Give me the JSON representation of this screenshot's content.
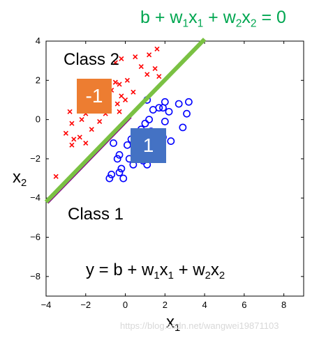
{
  "equations": {
    "boundary": {
      "b": "b",
      "plus1": " + w",
      "s1": "1",
      "x1": "x",
      "s1b": "1",
      "plus2": " + w",
      "s2": "2",
      "x2": "x",
      "s2b": "2",
      "eq": " = 0"
    },
    "model": {
      "pre": "y = b + w",
      "s1": "1",
      "x1": "x",
      "s1b": "1",
      "plus2": " + w",
      "s2": "2",
      "x2": "x",
      "s2b": "2"
    }
  },
  "labels": {
    "class2": "Class 2",
    "class1": "Class 1",
    "box_neg": "-1",
    "box_pos": "1"
  },
  "axes": {
    "xlabel_main": "x",
    "xlabel_sub": "1",
    "ylabel_main": "x",
    "ylabel_sub": "2"
  },
  "watermark": "https://blog.csdn.net/wangwei19871103",
  "colors": {
    "class2": "#ff0000",
    "class1": "#0000ff",
    "boundary": "#7ac143",
    "boundary_thin": "#800080",
    "box_neg": "#ed7d31",
    "box_pos": "#4472c4",
    "equation": "#00a650"
  },
  "chart_data": {
    "type": "scatter",
    "xlim": [
      -4,
      9
    ],
    "ylim": [
      -9,
      4
    ],
    "xticks": [
      -4,
      -2,
      0,
      2,
      4,
      6,
      8
    ],
    "yticks": [
      -8,
      -6,
      -4,
      -2,
      0,
      2,
      4
    ],
    "grid": false,
    "boundary_line": [
      [
        -4,
        -4.2
      ],
      [
        4,
        4.1
      ]
    ],
    "series": [
      {
        "marker": "x",
        "color": "#ff0000",
        "points": [
          [
            1.6,
            3.6
          ],
          [
            1.2,
            3.3
          ],
          [
            0.5,
            3.2
          ],
          [
            -0.5,
            2.9
          ],
          [
            -0.2,
            3.1
          ],
          [
            0.8,
            2.7
          ],
          [
            1.5,
            2.6
          ],
          [
            1.1,
            2.3
          ],
          [
            1.7,
            2.2
          ],
          [
            0.1,
            2.0
          ],
          [
            -0.5,
            1.9
          ],
          [
            -1.0,
            1.9
          ],
          [
            -1.5,
            1.8
          ],
          [
            -0.3,
            1.8
          ],
          [
            -0.7,
            1.5
          ],
          [
            0.4,
            1.4
          ],
          [
            -1.1,
            1.3
          ],
          [
            -0.2,
            1.2
          ],
          [
            -0.9,
            1.0
          ],
          [
            0.0,
            1.0
          ],
          [
            -0.4,
            0.8
          ],
          [
            -1.5,
            0.7
          ],
          [
            -1.8,
            0.6
          ],
          [
            -0.8,
            0.6
          ],
          [
            -0.3,
            0.4
          ],
          [
            -1.0,
            0.3
          ],
          [
            -2.0,
            0.3
          ],
          [
            -2.8,
            0.4
          ],
          [
            -2.2,
            0.0
          ],
          [
            -1.3,
            -0.1
          ],
          [
            -2.7,
            -0.2
          ],
          [
            -1.7,
            -0.5
          ],
          [
            -3.0,
            -0.7
          ],
          [
            -2.3,
            -0.9
          ],
          [
            -2.6,
            -1.0
          ],
          [
            -2.0,
            -1.2
          ],
          [
            -2.7,
            -1.3
          ],
          [
            -3.5,
            -2.9
          ]
        ]
      },
      {
        "marker": "o",
        "color": "#0000ff",
        "points": [
          [
            3.2,
            0.9
          ],
          [
            2.0,
            0.9
          ],
          [
            1.1,
            1.0
          ],
          [
            2.7,
            0.8
          ],
          [
            1.9,
            0.6
          ],
          [
            1.4,
            0.5
          ],
          [
            1.7,
            0.6
          ],
          [
            3.1,
            0.3
          ],
          [
            2.2,
            0.4
          ],
          [
            1.2,
            0.0
          ],
          [
            1.0,
            -0.2
          ],
          [
            2.0,
            -0.1
          ],
          [
            0.8,
            -0.5
          ],
          [
            2.9,
            -0.4
          ],
          [
            1.3,
            -0.6
          ],
          [
            0.7,
            -0.8
          ],
          [
            1.9,
            -0.9
          ],
          [
            0.3,
            -1.0
          ],
          [
            1.2,
            -1.1
          ],
          [
            2.3,
            -1.1
          ],
          [
            -0.6,
            -1.2
          ],
          [
            0.1,
            -1.3
          ],
          [
            1.0,
            -1.4
          ],
          [
            1.6,
            -1.5
          ],
          [
            0.5,
            -1.6
          ],
          [
            -0.3,
            -1.8
          ],
          [
            0.2,
            -2.0
          ],
          [
            -0.4,
            -2.0
          ],
          [
            0.9,
            -2.1
          ],
          [
            0.4,
            -2.3
          ],
          [
            1.1,
            -2.3
          ],
          [
            -0.2,
            -2.5
          ],
          [
            -0.3,
            -2.7
          ],
          [
            -0.7,
            -2.8
          ],
          [
            -0.1,
            -3.0
          ],
          [
            -0.8,
            -3.0
          ]
        ]
      }
    ]
  }
}
